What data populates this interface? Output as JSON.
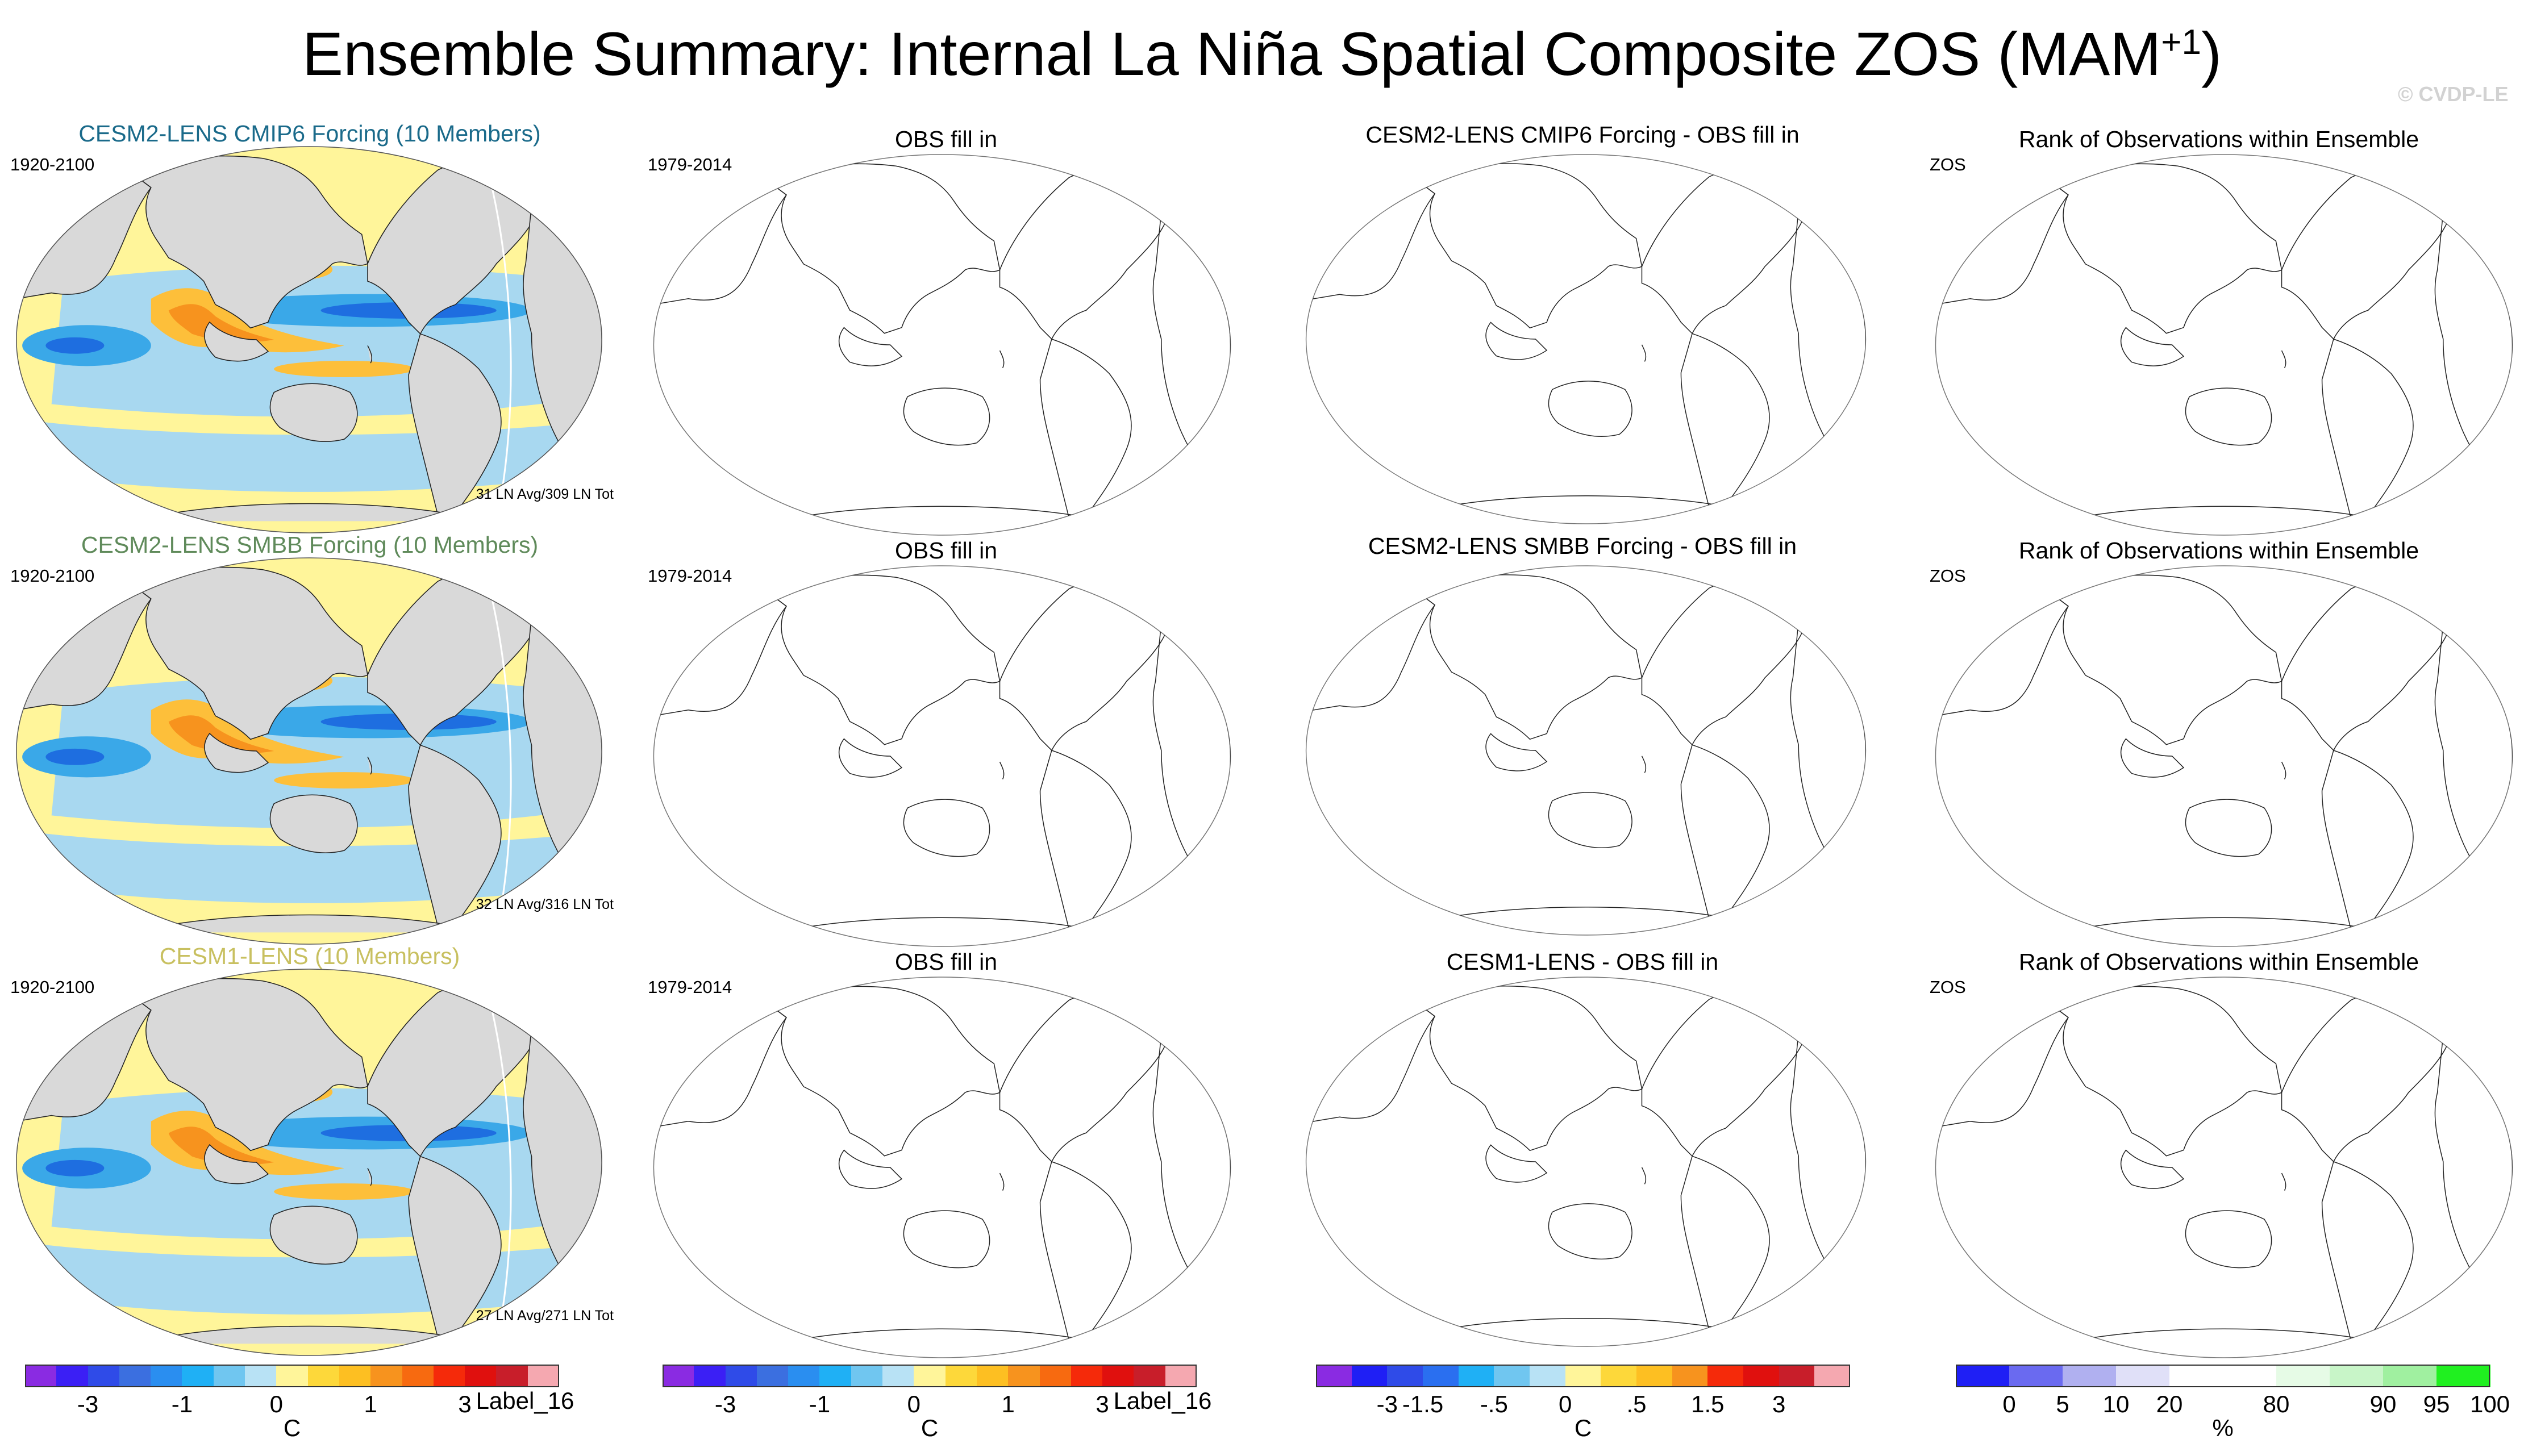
{
  "title": {
    "main": "Ensemble Summary: Internal La Niña Spatial Composite ZOS (MAM",
    "sup": "+1",
    "close": ")"
  },
  "copyright": "© CVDP-LE",
  "colors": {
    "land": "#d9d9d9",
    "ocean_light": "#a8d8f0",
    "ocean_blue": "#3aa8e8",
    "ocean_deep": "#1e6ee0",
    "pale_yellow": "#fff59a",
    "orange_light": "#fdbf3a",
    "orange": "#f7931e",
    "coast": "#222222"
  },
  "rows": [
    {
      "model_title": "CESM2-LENS CMIP6 Forcing (10 Members)",
      "model_title_color": "#1a6a8a",
      "years": "1920-2100",
      "count": "31 LN Avg/309 LN Tot",
      "obs_title": "OBS fill in",
      "obs_years": "1979-2014",
      "diff_title": "CESM2-LENS CMIP6 Forcing - OBS fill in",
      "rank_title": "Rank of Observations within Ensemble",
      "rank_var": "ZOS"
    },
    {
      "model_title": "CESM2-LENS SMBB Forcing (10 Members)",
      "model_title_color": "#5f8a5a",
      "years": "1920-2100",
      "count": "32 LN Avg/316 LN Tot",
      "obs_title": "OBS fill in",
      "obs_years": "1979-2014",
      "diff_title": "CESM2-LENS SMBB Forcing - OBS fill in",
      "rank_title": "Rank of Observations within Ensemble",
      "rank_var": "ZOS"
    },
    {
      "model_title": "CESM1-LENS (10 Members)",
      "model_title_color": "#c8c060",
      "years": "1920-2100",
      "count": "27 LN Avg/271 LN Tot",
      "obs_title": "OBS fill in",
      "obs_years": "1979-2014",
      "diff_title": "CESM1-LENS - OBS fill in",
      "rank_title": "Rank of Observations within Ensemble",
      "rank_var": "ZOS"
    }
  ],
  "colorbars": [
    {
      "colors": [
        "#8a2be2",
        "#3b1ff5",
        "#2f4be8",
        "#3b6fe0",
        "#2a8ef0",
        "#1fb0f5",
        "#70c6f0",
        "#b8e2f5",
        "#fff59a",
        "#fdd83a",
        "#fdbf22",
        "#f7931e",
        "#f76a10",
        "#f52a0a",
        "#e0100e",
        "#c81e2a",
        "#f5a8b0"
      ],
      "ticks": [
        {
          "label": "-3",
          "pos": 2
        },
        {
          "label": "-1",
          "pos": 5
        },
        {
          "label": "0",
          "pos": 8
        },
        {
          "label": "1",
          "pos": 11
        },
        {
          "label": "3",
          "pos": 14
        }
      ],
      "end_label": "Label_16",
      "unit": "C"
    },
    {
      "colors": [
        "#8a2be2",
        "#3b1ff5",
        "#2f4be8",
        "#3b6fe0",
        "#2a8ef0",
        "#1fb0f5",
        "#70c6f0",
        "#b8e2f5",
        "#fff59a",
        "#fdd83a",
        "#fdbf22",
        "#f7931e",
        "#f76a10",
        "#f52a0a",
        "#e0100e",
        "#c81e2a",
        "#f5a8b0"
      ],
      "ticks": [
        {
          "label": "-3",
          "pos": 2
        },
        {
          "label": "-1",
          "pos": 5
        },
        {
          "label": "0",
          "pos": 8
        },
        {
          "label": "1",
          "pos": 11
        },
        {
          "label": "3",
          "pos": 14
        }
      ],
      "end_label": "Label_16",
      "unit": "C"
    },
    {
      "colors": [
        "#8a2be2",
        "#1f1ff5",
        "#2f4be8",
        "#2a6ff0",
        "#1fb0f5",
        "#70c6f0",
        "#b8e2f5",
        "#fff59a",
        "#fdd83a",
        "#fdbf22",
        "#f7931e",
        "#f52a0a",
        "#e0100e",
        "#c81e2a",
        "#f5a8b0"
      ],
      "ticks": [
        {
          "label": "-3",
          "pos": 2
        },
        {
          "label": "-1.5",
          "pos": 3
        },
        {
          "label": "-.5",
          "pos": 5
        },
        {
          "label": "0",
          "pos": 7
        },
        {
          "label": ".5",
          "pos": 9
        },
        {
          "label": "1.5",
          "pos": 11
        },
        {
          "label": "3",
          "pos": 13
        }
      ],
      "end_label": "",
      "unit": "C"
    },
    {
      "colors": [
        "#1f1ff5",
        "#6a6af0",
        "#b0b0f0",
        "#e0e0f8",
        "#ffffff",
        "#ffffff",
        "#e6fbe6",
        "#c8f5c8",
        "#a0f0a0",
        "#20f020"
      ],
      "ticks": [
        {
          "label": "0",
          "pos": 1
        },
        {
          "label": "5",
          "pos": 2
        },
        {
          "label": "10",
          "pos": 3
        },
        {
          "label": "20",
          "pos": 4
        },
        {
          "label": "80",
          "pos": 6
        },
        {
          "label": "90",
          "pos": 8
        },
        {
          "label": "95",
          "pos": 9
        },
        {
          "label": "100",
          "pos": 10
        }
      ],
      "end_label": "",
      "unit": "%"
    }
  ]
}
